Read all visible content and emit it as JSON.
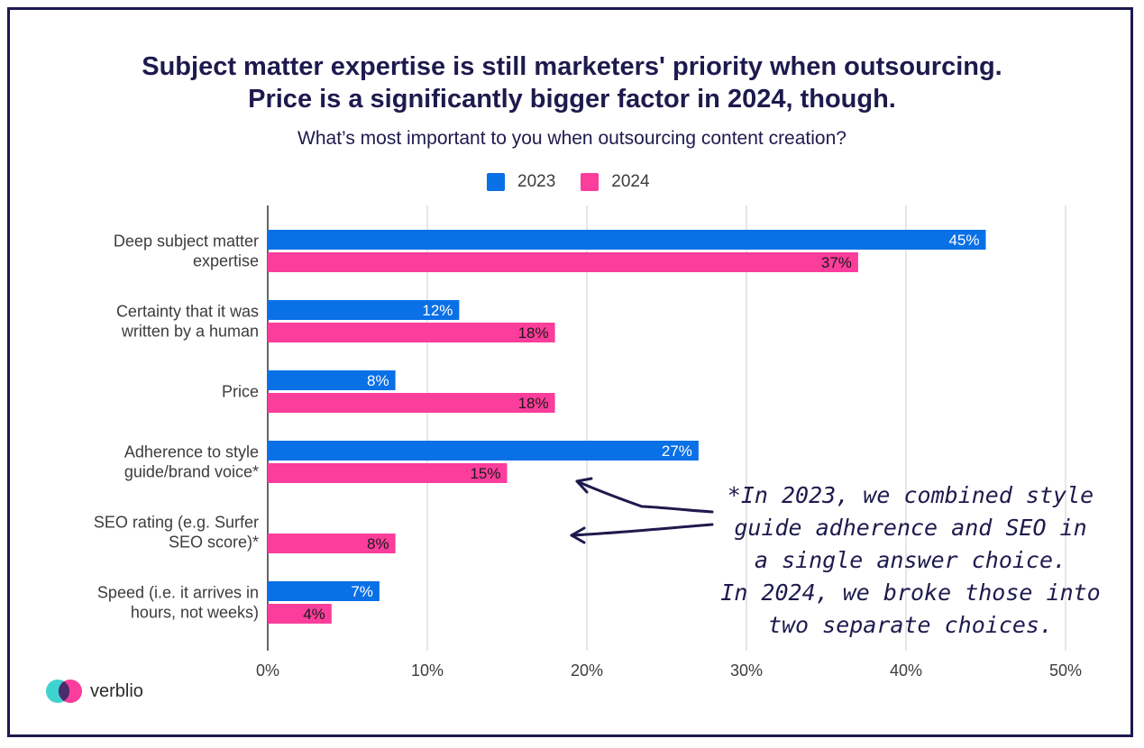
{
  "colors": {
    "series_2023": "#0a70e6",
    "series_2024": "#fb3d9b",
    "text_dark": "#1e1a4d",
    "frame": "#1c1a4f"
  },
  "title_line1": "Subject matter expertise is still marketers' priority when outsourcing.",
  "title_line2": "Price is a significantly bigger factor in 2024, though.",
  "subtitle": "What’s most important to you when outsourcing content creation?",
  "annotation_lines": [
    "*In 2023, we combined style",
    "guide adherence and SEO in",
    "a single answer choice.",
    "In 2024, we broke those into",
    "two separate choices."
  ],
  "brand": {
    "name": "verblio",
    "icon": "verblio-logo-icon"
  },
  "chart_data": {
    "type": "bar",
    "orientation": "horizontal",
    "categories": [
      [
        "Deep subject matter",
        "expertise"
      ],
      [
        "Certainty that it was",
        "written by a human"
      ],
      [
        "Price"
      ],
      [
        "Adherence to style",
        "guide/brand voice*"
      ],
      [
        "SEO rating (e.g. Surfer",
        "SEO score)*"
      ],
      [
        "Speed (i.e. it arrives in",
        "hours, not weeks)"
      ]
    ],
    "series": [
      {
        "name": "2023",
        "values": [
          45,
          12,
          8,
          27,
          null,
          7
        ],
        "labels": [
          "45%",
          "12%",
          "8%",
          "27%",
          "",
          "7%"
        ]
      },
      {
        "name": "2024",
        "values": [
          37,
          18,
          18,
          15,
          8,
          4
        ],
        "labels": [
          "37%",
          "18%",
          "18%",
          "15%",
          "8%",
          "4%"
        ]
      }
    ],
    "xlim": [
      0,
      50
    ],
    "xticks": [
      0,
      10,
      20,
      30,
      40,
      50
    ],
    "xtick_labels": [
      "0%",
      "10%",
      "20%",
      "30%",
      "40%",
      "50%"
    ],
    "grid": true,
    "legend_position": "top"
  }
}
